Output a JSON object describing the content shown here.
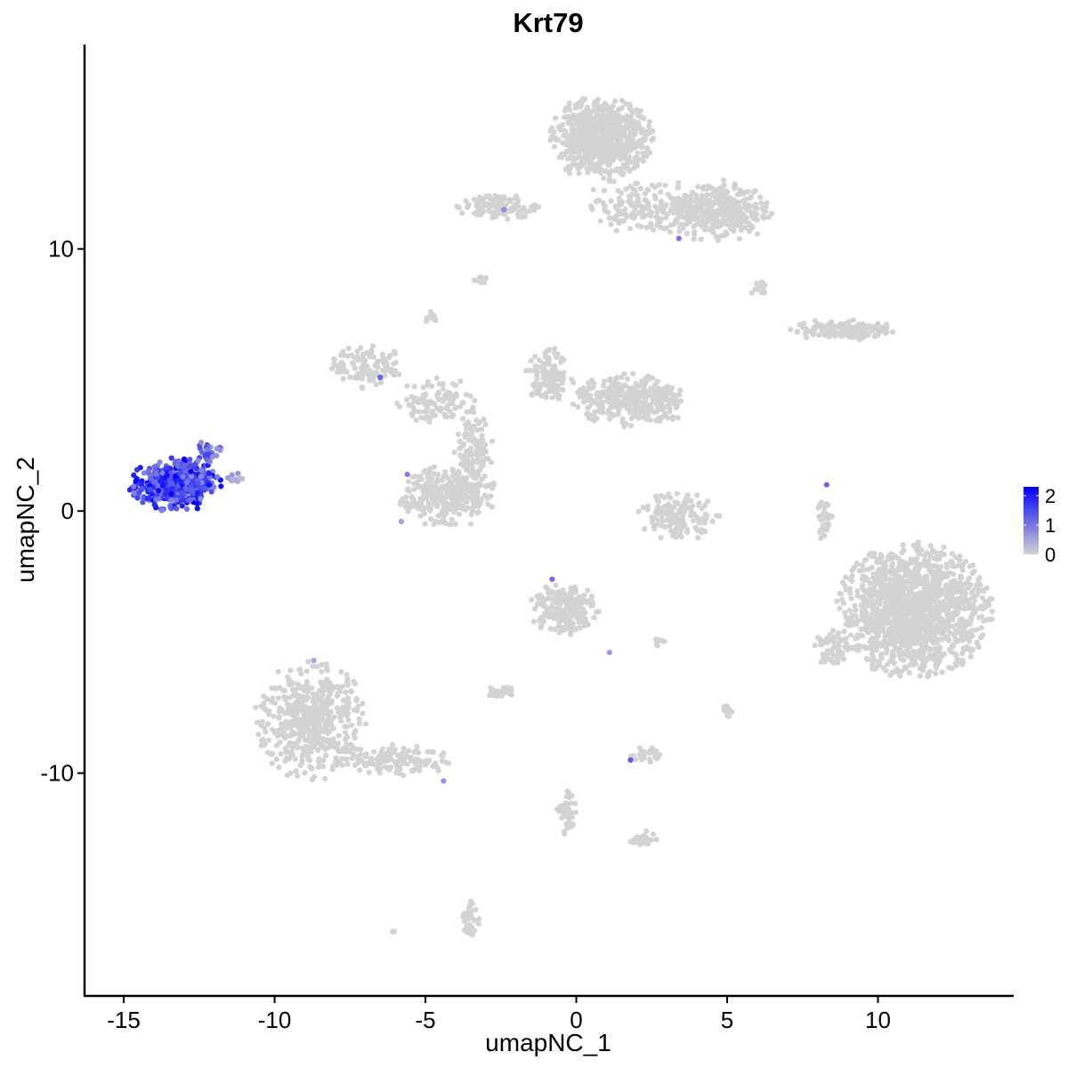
{
  "chart_data": {
    "type": "scatter",
    "title": "Krt79",
    "xlabel": "umapNC_1",
    "ylabel": "umapNC_2",
    "xlim": [
      -16.3,
      14.5
    ],
    "ylim": [
      -18.5,
      17.8
    ],
    "x_ticks": [
      -15,
      -10,
      -5,
      0,
      5,
      10
    ],
    "y_ticks": [
      -10,
      0,
      10
    ],
    "x_tick_labels": [
      "-15",
      "-10",
      "-5",
      "0",
      "5",
      "10"
    ],
    "y_tick_labels": [
      "-10",
      "0",
      "10"
    ],
    "grid": false,
    "legend": {
      "placement": "right",
      "type": "colorbar",
      "min": 0,
      "max": 2.3,
      "ticks": [
        0,
        1,
        2
      ],
      "tick_labels": [
        "0",
        "1",
        "2"
      ],
      "low_color": "#d3d3d3",
      "high_color": "#0000ff"
    },
    "clusters": [
      {
        "name": "",
        "cx": -13.3,
        "cy": 1.0,
        "rx": 1.5,
        "ry": 1.0,
        "n": 420,
        "expression": [
          0.8,
          2.3
        ]
      },
      {
        "name": "",
        "cx": -12.2,
        "cy": 2.2,
        "rx": 0.5,
        "ry": 0.5,
        "n": 30,
        "expression": [
          0.6,
          1.6
        ]
      },
      {
        "name": "",
        "cx": -11.3,
        "cy": 1.3,
        "rx": 0.4,
        "ry": 0.2,
        "n": 10,
        "expression": [
          0.2,
          0.8
        ]
      },
      {
        "name": "",
        "cx": 0.8,
        "cy": 14.2,
        "rx": 1.7,
        "ry": 1.6,
        "n": 700,
        "expression": [
          0,
          0
        ]
      },
      {
        "name": "",
        "cx": 4.8,
        "cy": 11.4,
        "rx": 1.6,
        "ry": 1.2,
        "n": 300,
        "expression": [
          0,
          0
        ]
      },
      {
        "name": "",
        "cx": 2.6,
        "cy": 11.6,
        "rx": 2.6,
        "ry": 1.0,
        "n": 200,
        "expression": [
          0,
          0
        ]
      },
      {
        "name": "",
        "cx": -2.6,
        "cy": 11.6,
        "rx": 1.3,
        "ry": 0.5,
        "n": 110,
        "expression": [
          0,
          0
        ]
      },
      {
        "name": "",
        "cx": 8.8,
        "cy": 6.9,
        "rx": 1.7,
        "ry": 0.4,
        "n": 150,
        "expression": [
          0,
          0
        ]
      },
      {
        "name": "",
        "cx": -6.9,
        "cy": 5.5,
        "rx": 1.2,
        "ry": 0.8,
        "n": 120,
        "expression": [
          0,
          0
        ]
      },
      {
        "name": "",
        "cx": -4.6,
        "cy": 4.2,
        "rx": 1.4,
        "ry": 0.9,
        "n": 110,
        "expression": [
          0,
          0
        ]
      },
      {
        "name": "",
        "cx": 1.8,
        "cy": 4.2,
        "rx": 1.9,
        "ry": 1.0,
        "n": 330,
        "expression": [
          0,
          0
        ]
      },
      {
        "name": "",
        "cx": -0.9,
        "cy": 5.2,
        "rx": 0.8,
        "ry": 1.0,
        "n": 120,
        "expression": [
          0,
          0
        ]
      },
      {
        "name": "",
        "cx": -3.4,
        "cy": 2.2,
        "rx": 0.7,
        "ry": 1.5,
        "n": 110,
        "expression": [
          0,
          0
        ]
      },
      {
        "name": "",
        "cx": -4.3,
        "cy": 0.6,
        "rx": 1.6,
        "ry": 1.2,
        "n": 300,
        "expression": [
          0,
          0
        ]
      },
      {
        "name": "",
        "cx": 3.4,
        "cy": -0.2,
        "rx": 1.3,
        "ry": 0.9,
        "n": 140,
        "expression": [
          0,
          0
        ]
      },
      {
        "name": "",
        "cx": 11.2,
        "cy": -3.8,
        "rx": 2.5,
        "ry": 2.5,
        "n": 1400,
        "expression": [
          0,
          0
        ]
      },
      {
        "name": "",
        "cx": 8.5,
        "cy": -5.2,
        "rx": 0.6,
        "ry": 0.8,
        "n": 60,
        "expression": [
          0,
          0
        ]
      },
      {
        "name": "",
        "cx": 8.2,
        "cy": -0.3,
        "rx": 0.3,
        "ry": 0.8,
        "n": 35,
        "expression": [
          0,
          0
        ]
      },
      {
        "name": "",
        "cx": -0.4,
        "cy": -3.7,
        "rx": 1.1,
        "ry": 1.0,
        "n": 200,
        "expression": [
          0,
          0
        ]
      },
      {
        "name": "",
        "cx": -8.8,
        "cy": -8.0,
        "rx": 1.8,
        "ry": 2.2,
        "n": 520,
        "expression": [
          0,
          0
        ]
      },
      {
        "name": "",
        "cx": -6.0,
        "cy": -9.5,
        "rx": 1.8,
        "ry": 0.6,
        "n": 120,
        "expression": [
          0,
          0
        ]
      },
      {
        "name": "",
        "cx": -2.5,
        "cy": -6.9,
        "rx": 0.5,
        "ry": 0.2,
        "n": 35,
        "expression": [
          0,
          0
        ]
      },
      {
        "name": "",
        "cx": 2.3,
        "cy": -9.3,
        "rx": 0.5,
        "ry": 0.3,
        "n": 30,
        "expression": [
          0,
          0
        ]
      },
      {
        "name": "",
        "cx": 2.2,
        "cy": -12.5,
        "rx": 0.5,
        "ry": 0.3,
        "n": 25,
        "expression": [
          0,
          0
        ]
      },
      {
        "name": "",
        "cx": -3.5,
        "cy": -15.6,
        "rx": 0.3,
        "ry": 0.7,
        "n": 40,
        "expression": [
          0,
          0
        ]
      },
      {
        "name": "",
        "cx": -0.3,
        "cy": -11.4,
        "rx": 0.4,
        "ry": 1.0,
        "n": 40,
        "expression": [
          0,
          0
        ]
      },
      {
        "name": "",
        "cx": 5.0,
        "cy": -7.6,
        "rx": 0.2,
        "ry": 0.3,
        "n": 12,
        "expression": [
          0,
          0
        ]
      },
      {
        "name": "",
        "cx": 6.0,
        "cy": 8.5,
        "rx": 0.3,
        "ry": 0.3,
        "n": 12,
        "expression": [
          0,
          0
        ]
      },
      {
        "name": "",
        "cx": -3.1,
        "cy": 8.8,
        "rx": 0.3,
        "ry": 0.2,
        "n": 10,
        "expression": [
          0,
          0
        ]
      },
      {
        "name": "",
        "cx": -4.8,
        "cy": 7.4,
        "rx": 0.2,
        "ry": 0.3,
        "n": 10,
        "expression": [
          0,
          0
        ]
      },
      {
        "name": "",
        "cx": 2.8,
        "cy": -5.0,
        "rx": 0.3,
        "ry": 0.2,
        "n": 8,
        "expression": [
          0,
          0
        ]
      },
      {
        "name": "",
        "cx": -6.0,
        "cy": -16.0,
        "rx": 0.1,
        "ry": 0.1,
        "n": 3,
        "expression": [
          0,
          0
        ]
      }
    ],
    "highlighted_points": [
      {
        "x": -2.4,
        "y": 11.5,
        "value": 0.8
      },
      {
        "x": 3.4,
        "y": 10.4,
        "value": 1.0
      },
      {
        "x": -6.5,
        "y": 5.1,
        "value": 1.2
      },
      {
        "x": -5.6,
        "y": 1.4,
        "value": 0.9
      },
      {
        "x": -5.8,
        "y": -0.4,
        "value": 0.5
      },
      {
        "x": 8.3,
        "y": 1.0,
        "value": 1.2
      },
      {
        "x": -0.8,
        "y": -2.6,
        "value": 1.1
      },
      {
        "x": 1.1,
        "y": -5.4,
        "value": 0.6
      },
      {
        "x": -8.7,
        "y": -5.7,
        "value": 0.5
      },
      {
        "x": 1.8,
        "y": -9.5,
        "value": 1.3
      },
      {
        "x": -4.4,
        "y": -10.3,
        "value": 0.7
      }
    ]
  }
}
